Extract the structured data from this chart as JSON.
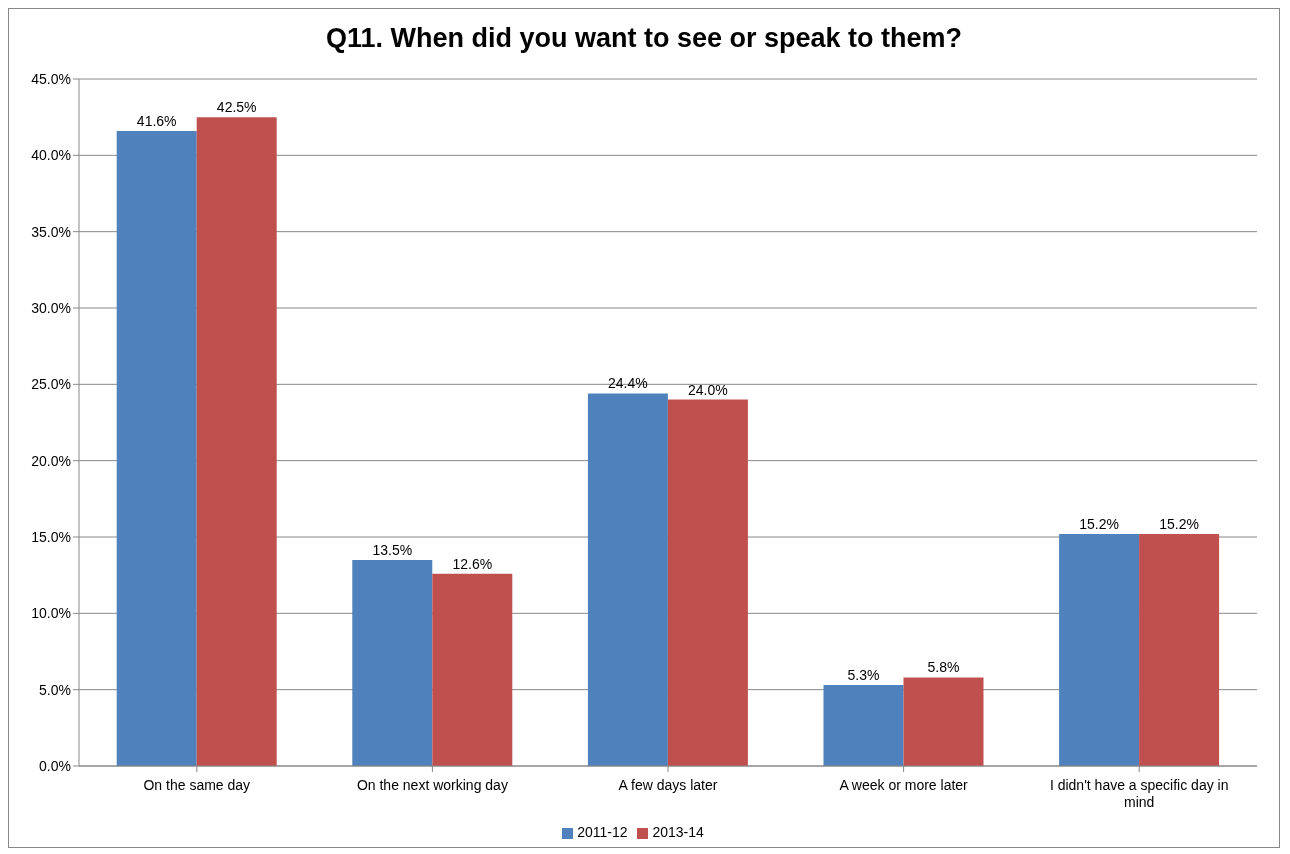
{
  "chart_data": {
    "type": "bar",
    "title": "Q11. When did you want to see or speak to them?",
    "categories": [
      "On the same day",
      "On the next working day",
      "A few days later",
      "A week or more later",
      "I didn't have a specific day in mind"
    ],
    "series": [
      {
        "name": "2011-12",
        "color": "#4f81bd",
        "values": [
          41.6,
          13.5,
          24.4,
          5.3,
          15.2
        ],
        "value_labels": [
          "41.6%",
          "13.5%",
          "24.4%",
          "5.3%",
          "15.2%"
        ]
      },
      {
        "name": "2013-14",
        "color": "#c0504d",
        "values": [
          42.5,
          12.6,
          24.0,
          5.8,
          15.2
        ],
        "value_labels": [
          "42.5%",
          "12.6%",
          "24.0%",
          "5.8%",
          "15.2%"
        ]
      }
    ],
    "ylim": [
      0,
      45
    ],
    "yticks": [
      {
        "value": 0,
        "label": "0.0%"
      },
      {
        "value": 5,
        "label": "5.0%"
      },
      {
        "value": 10,
        "label": "10.0%"
      },
      {
        "value": 15,
        "label": "15.0%"
      },
      {
        "value": 20,
        "label": "20.0%"
      },
      {
        "value": 25,
        "label": "25.0%"
      },
      {
        "value": 30,
        "label": "30.0%"
      },
      {
        "value": 35,
        "label": "35.0%"
      },
      {
        "value": 40,
        "label": "40.0%"
      },
      {
        "value": 45,
        "label": "45.0%"
      }
    ],
    "grid": "y",
    "legend": "bottom"
  }
}
